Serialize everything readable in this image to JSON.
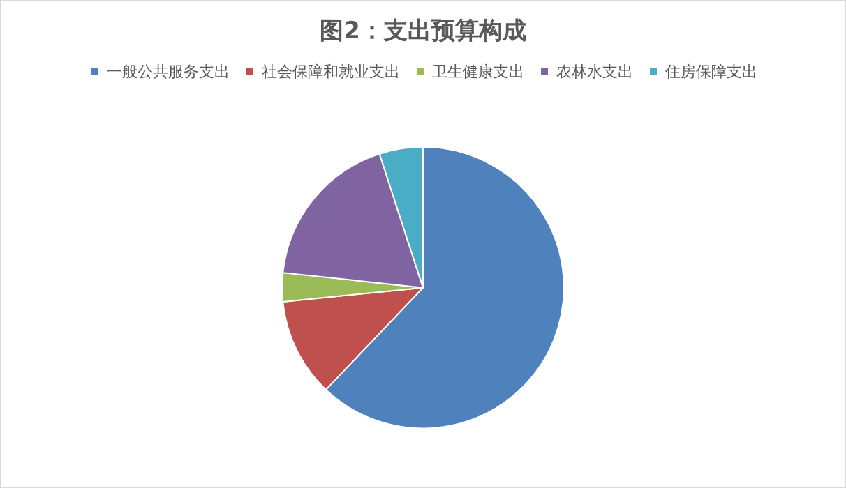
{
  "chart_data": {
    "type": "pie",
    "title": "图2：支出预算构成",
    "categories": [
      "一般公共服务支出",
      "社会保障和就业支出",
      "卫生健康支出",
      "农林水支出",
      "住房保障支出"
    ],
    "values": [
      62.1,
      11.3,
      3.3,
      18.3,
      5.0
    ],
    "colors": [
      "#4f81bd",
      "#c0504d",
      "#9bbb59",
      "#8064a2",
      "#4bacc6"
    ],
    "legend": "top"
  }
}
